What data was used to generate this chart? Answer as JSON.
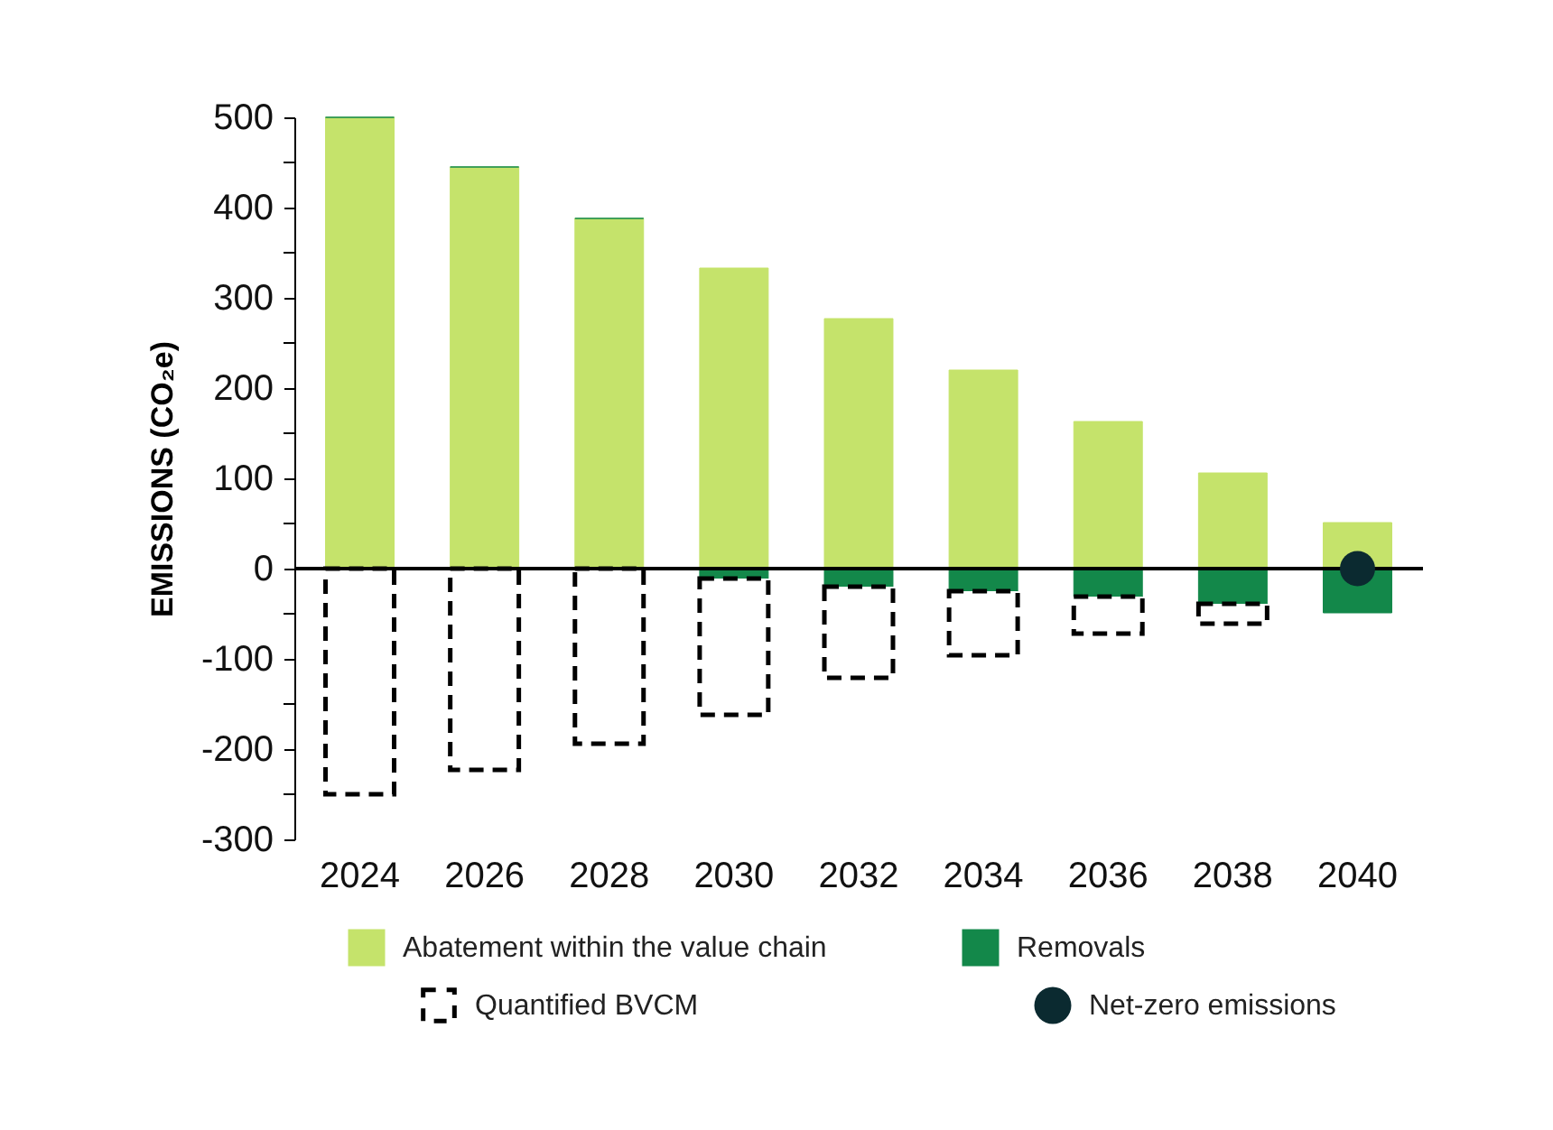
{
  "chart_data": {
    "type": "bar",
    "stacked": true,
    "ylabel": "EMISSIONS (CO₂e)",
    "categories": [
      "2024",
      "2026",
      "2028",
      "2030",
      "2032",
      "2034",
      "2036",
      "2038",
      "2040"
    ],
    "series": [
      {
        "name": "Abatement within the value chain",
        "color": "#c5e36b",
        "values": [
          500,
          445,
          388,
          333,
          277,
          220,
          163,
          106,
          51
        ]
      },
      {
        "name": "Removals",
        "color": "#13884a",
        "values": [
          0,
          0,
          0,
          -11,
          -20,
          -25,
          -31,
          -39,
          -49
        ]
      },
      {
        "name": "Quantified BVCM",
        "color": "#ffffff",
        "line_style": "dashed",
        "values": [
          -250,
          -223,
          -194,
          -151,
          -101,
          -71,
          -41,
          -22,
          null
        ]
      },
      {
        "name": "Net-zero emissions",
        "type": "scatter",
        "marker": "circle",
        "color": "#0b2a30",
        "values": [
          null,
          null,
          null,
          null,
          null,
          null,
          null,
          null,
          0
        ]
      }
    ],
    "ylim": [
      -300,
      500
    ],
    "yticks": [
      -300,
      {
        "value": -250,
        "label": null
      },
      -200,
      {
        "value": -150,
        "label": null
      },
      -100,
      {
        "value": -50,
        "label": null
      },
      0,
      {
        "value": 50,
        "label": null
      },
      100,
      {
        "value": 150,
        "label": null
      },
      200,
      {
        "value": 250,
        "label": null
      },
      300,
      {
        "value": 350,
        "label": null
      },
      400,
      {
        "value": 450,
        "label": null
      },
      500
    ],
    "ref_lines": [
      {
        "axis": "y",
        "value": 0,
        "color": "#000000"
      }
    ],
    "grid": false,
    "legend": "bottom"
  }
}
